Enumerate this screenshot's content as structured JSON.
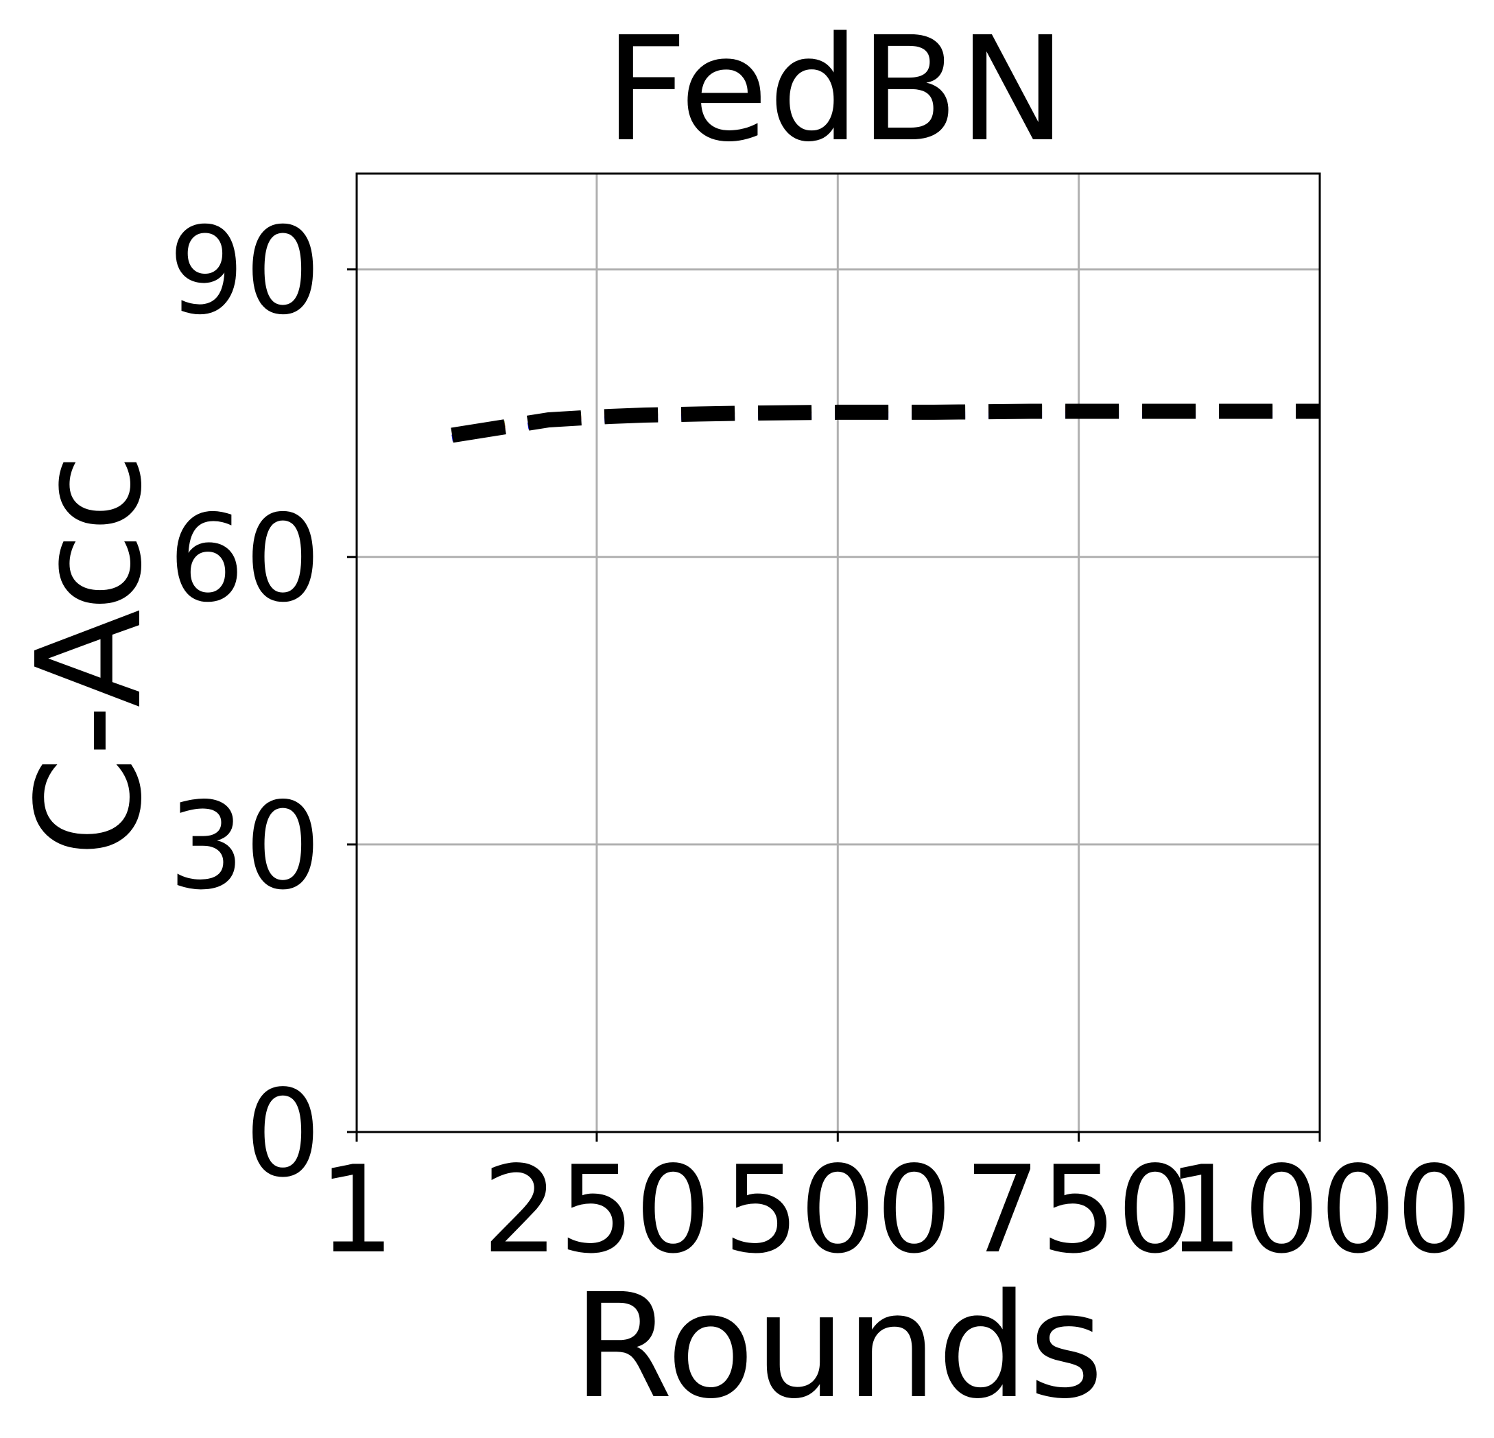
{
  "chart_data": {
    "type": "line",
    "title": "FedBN",
    "xlabel": "Rounds",
    "ylabel": "C-Acc",
    "xlim": [
      1,
      1000
    ],
    "ylim": [
      0,
      100
    ],
    "xticks": [
      1,
      250,
      500,
      750,
      1000
    ],
    "xtick_labels": [
      "1",
      "250",
      "500",
      "750",
      "1000"
    ],
    "yticks": [
      0,
      30,
      60,
      90
    ],
    "ytick_labels": [
      "0",
      "30",
      "60",
      "90"
    ],
    "grid": true,
    "line_style": "dashed",
    "series": [
      {
        "color": "#6b8e23",
        "x": [
          100,
          200,
          250,
          300,
          400,
          500,
          600,
          700,
          800,
          900,
          1000
        ],
        "y": [
          73.0,
          74.6,
          74.9,
          75.1,
          75.3,
          75.4,
          75.5,
          75.5,
          75.5,
          75.5,
          75.5
        ]
      },
      {
        "color": "#d62728",
        "x": [
          100,
          200,
          250,
          300,
          400,
          500,
          600,
          700,
          800,
          900,
          1000
        ],
        "y": [
          72.8,
          74.4,
          74.8,
          75.0,
          75.2,
          75.3,
          75.4,
          75.4,
          75.4,
          75.4,
          75.4
        ]
      },
      {
        "color": "#0000ff",
        "x": [
          100,
          200,
          250,
          300,
          400,
          500,
          600,
          700,
          800,
          900,
          1000
        ],
        "y": [
          72.4,
          74.0,
          74.3,
          74.5,
          74.7,
          74.8,
          74.8,
          74.8,
          74.8,
          74.8,
          74.8
        ]
      },
      {
        "color": "#000000",
        "x": [
          100,
          200,
          250,
          300,
          400,
          500,
          600,
          700,
          800,
          900,
          1000
        ],
        "y": [
          72.7,
          74.3,
          74.6,
          74.8,
          75.0,
          75.1,
          75.1,
          75.2,
          75.2,
          75.2,
          75.2
        ]
      }
    ]
  }
}
